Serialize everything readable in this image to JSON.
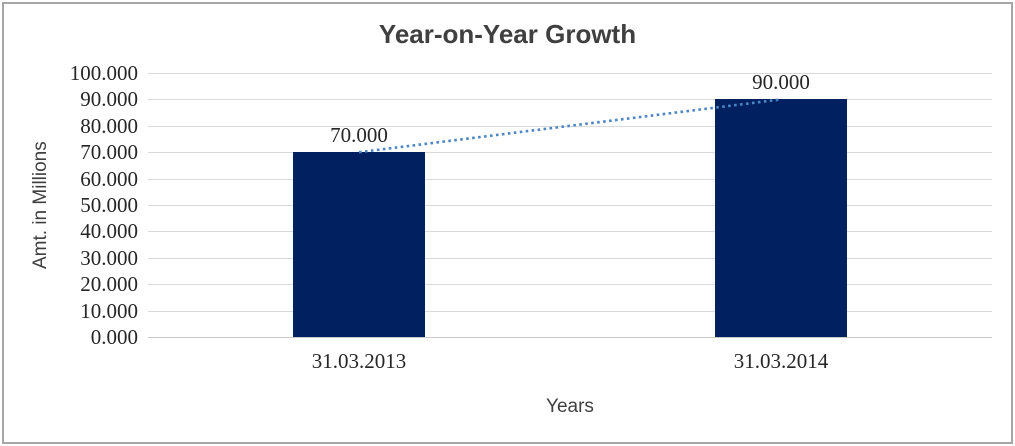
{
  "chart_data": {
    "type": "bar",
    "title": "Year-on-Year Growth",
    "xlabel": "Years",
    "ylabel": "Amt. in Millions",
    "categories": [
      "31.03.2013",
      "31.03.2014"
    ],
    "values": [
      70,
      90
    ],
    "data_labels": [
      "70.000",
      "90.000"
    ],
    "ylim": [
      0,
      100
    ],
    "ytick_step": 10,
    "ytick_labels": [
      "0.000",
      "10.000",
      "20.000",
      "30.000",
      "40.000",
      "50.000",
      "60.000",
      "70.000",
      "80.000",
      "90.000",
      "100.000"
    ],
    "grid": true,
    "legend": "none",
    "trendline": {
      "type": "linear",
      "style": "dotted"
    },
    "colors": {
      "bar": "#002060",
      "trendline": "#4b86c6",
      "gridline": "#d9d9d9",
      "axis_line": "#c9c9c9",
      "title_text": "#404040",
      "tick_text": "#262626",
      "border": "#a6a6a6"
    }
  }
}
